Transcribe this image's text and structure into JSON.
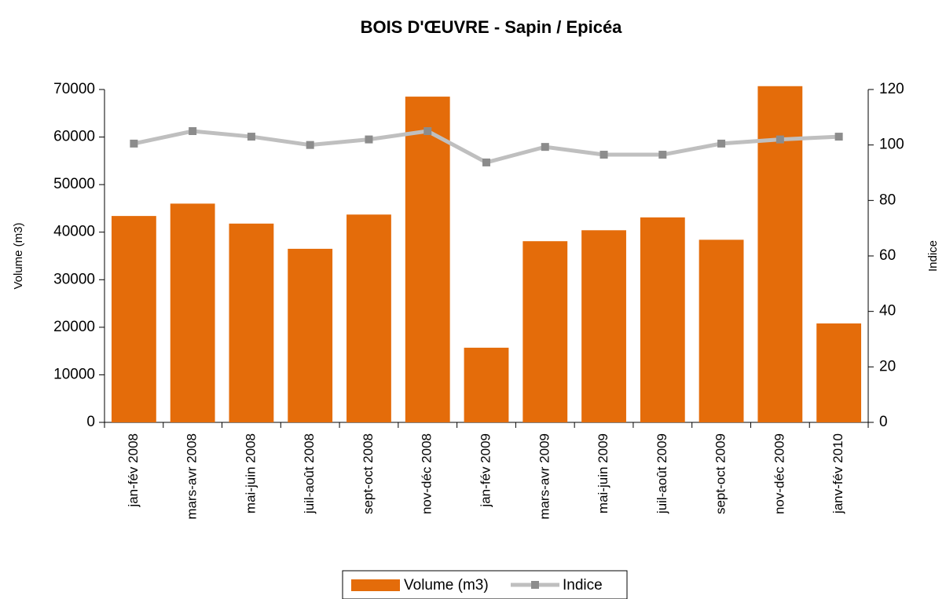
{
  "chart_data": {
    "type": "bar_line",
    "title": "BOIS D'ŒUVRE - Sapin / Epicéa",
    "y_label": "Volume (m3)",
    "y2_label": "Indice",
    "categories": [
      "jan-fév 2008",
      "mars-avr 2008",
      "mai-juin 2008",
      "juil-août 2008",
      "sept-oct 2008",
      "nov-déc 2008",
      "jan-fév 2009",
      "mars-avr 2009",
      "mai-juin 2009",
      "juil-août 2009",
      "sept-oct 2009",
      "nov-déc 2009",
      "janv-fév 2010"
    ],
    "series": [
      {
        "name": "Volume (m3)",
        "type": "bar",
        "color": "#e46c0a",
        "values": [
          43400,
          46000,
          41800,
          36500,
          43700,
          68500,
          15700,
          38100,
          40400,
          43100,
          38400,
          70700,
          20800
        ]
      },
      {
        "name": "Indice",
        "type": "line",
        "axis": "y2",
        "color": "#bfbfbf",
        "marker_color": "#8c8c8c",
        "values": [
          100.5,
          105,
          103,
          100,
          102,
          105,
          93.7,
          99.3,
          96.5,
          96.5,
          100.5,
          102,
          103
        ]
      }
    ],
    "ylim": [
      0,
      70000
    ],
    "yticks": [
      0,
      10000,
      20000,
      30000,
      40000,
      50000,
      60000,
      70000
    ],
    "y2lim": [
      0,
      120
    ],
    "y2ticks": [
      0,
      20,
      40,
      60,
      80,
      100,
      120
    ],
    "legend": "bottom"
  }
}
